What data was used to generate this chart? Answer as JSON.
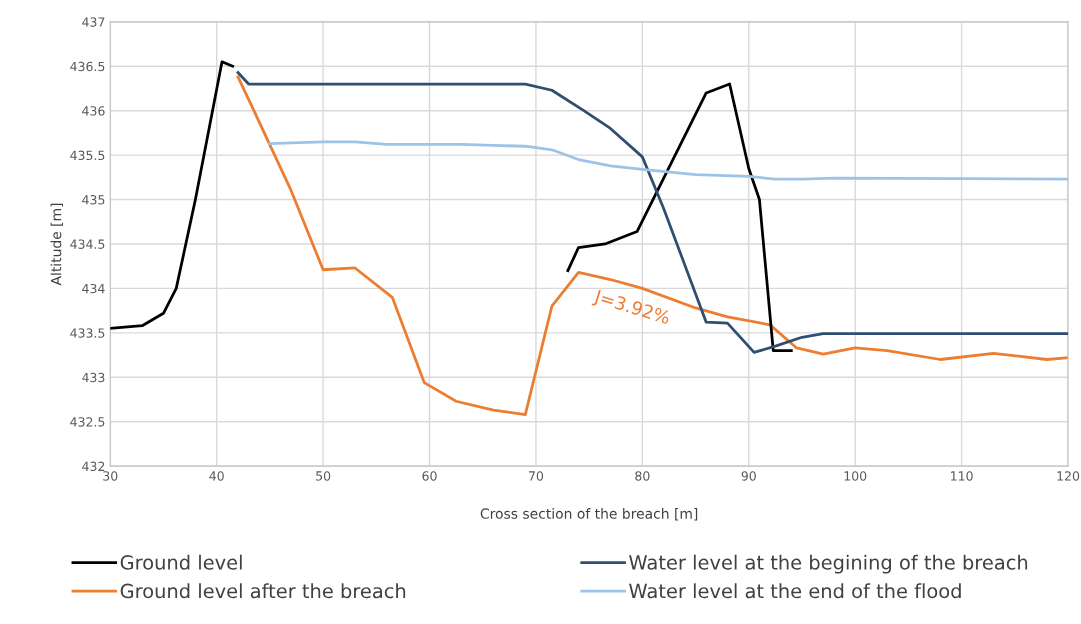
{
  "chart_data": {
    "type": "line",
    "xlabel": "Cross section of the breach [m]",
    "ylabel": "Altitude [m]",
    "xlim": [
      30,
      120
    ],
    "xticks": [
      30,
      40,
      50,
      60,
      70,
      80,
      90,
      100,
      110,
      120
    ],
    "ylim": [
      432,
      437
    ],
    "yticks": [
      432,
      432.5,
      433,
      433.5,
      434,
      434.5,
      435,
      435.5,
      436,
      436.5,
      437
    ],
    "grid": true,
    "legend": "bottom",
    "marker": "none",
    "line_style": "solid",
    "annotations": [
      "J=3.92%"
    ],
    "series": [
      {
        "name": "Ground level",
        "color": "#000000",
        "x": [
          30,
          33,
          35,
          36.2,
          38,
          40.5,
          41.5,
          41.7,
          73,
          74,
          76.5,
          79.5,
          86,
          88.2,
          90,
          91,
          92.3,
          94
        ],
        "values": [
          433.55,
          433.58,
          433.72,
          434.0,
          435.0,
          436.55,
          436.5,
          null,
          434.2,
          434.46,
          434.5,
          434.64,
          436.2,
          436.3,
          435.35,
          435.0,
          433.3,
          433.3
        ]
      },
      {
        "name": "Ground level after the breach",
        "color": "#ed7d31",
        "x": [
          42,
          43.5,
          47,
          50,
          53,
          56.5,
          59.5,
          62.5,
          66,
          69,
          71.5,
          74,
          77,
          80,
          85,
          88,
          92,
          94.5,
          97,
          100,
          103,
          108,
          113,
          118,
          120
        ],
        "values": [
          436.38,
          436.0,
          435.1,
          434.21,
          434.23,
          433.9,
          432.94,
          432.73,
          432.63,
          432.58,
          433.8,
          434.18,
          434.1,
          434.0,
          433.78,
          433.68,
          433.59,
          433.33,
          433.26,
          433.33,
          433.3,
          433.2,
          433.27,
          433.2,
          433.22
        ]
      },
      {
        "name": "Water level at the begining of the breach",
        "color": "#2f4f70",
        "x": [
          42,
          43,
          69,
          71.5,
          74.5,
          77,
          80,
          82,
          86,
          88,
          90.5,
          92.5,
          95,
          97,
          120
        ],
        "values": [
          436.43,
          436.3,
          436.3,
          436.23,
          436.0,
          435.8,
          435.48,
          434.9,
          433.62,
          433.61,
          433.28,
          433.35,
          433.45,
          433.49,
          433.49
        ]
      },
      {
        "name": "Water level at the end of the flood",
        "color": "#9dc3e6",
        "x": [
          45,
          50,
          53,
          56,
          60,
          63,
          66,
          69,
          71.5,
          74,
          77,
          80,
          85,
          90,
          92.5,
          95,
          98,
          120
        ],
        "values": [
          435.63,
          435.65,
          435.65,
          435.62,
          435.62,
          435.62,
          435.61,
          435.6,
          435.56,
          435.45,
          435.38,
          435.34,
          435.28,
          435.26,
          435.23,
          435.23,
          435.24,
          435.23
        ]
      }
    ]
  }
}
